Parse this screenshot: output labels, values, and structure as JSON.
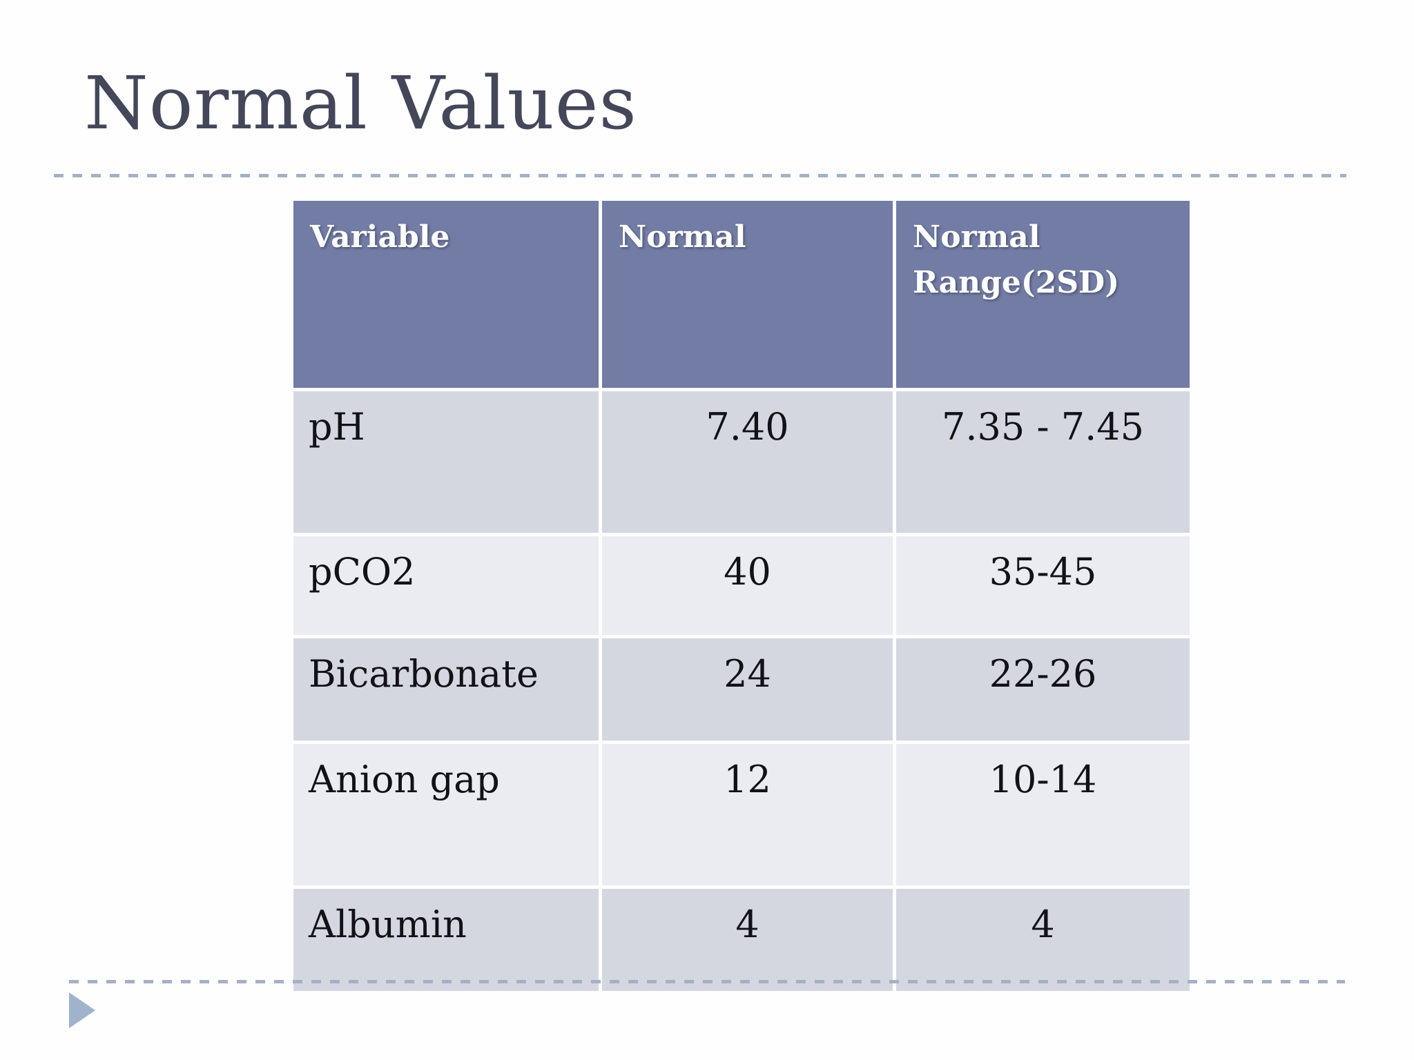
{
  "slide": {
    "title": "Normal Values"
  },
  "table": {
    "columns": [
      "Variable",
      "Normal",
      "Normal Range(2SD)"
    ],
    "rows": [
      {
        "variable": "pH",
        "normal": "7.40",
        "range": "7.35 - 7.45"
      },
      {
        "variable": "pCO2",
        "normal": "40",
        "range": "35-45"
      },
      {
        "variable": "Bicarbonate",
        "normal": "24",
        "range": "22-26"
      },
      {
        "variable": "Anion gap",
        "normal": "12",
        "range": "10-14"
      },
      {
        "variable": "Albumin",
        "normal": "4",
        "range": "4"
      }
    ]
  },
  "theme": {
    "header_bg": "#727ca4",
    "row_dark_bg": "#d5d7e0",
    "row_light_bg": "#ebecf1",
    "title_color": "#44475a",
    "dashed_line_color": "#a4b1c4",
    "arrow_color": "#a0b3cd"
  }
}
